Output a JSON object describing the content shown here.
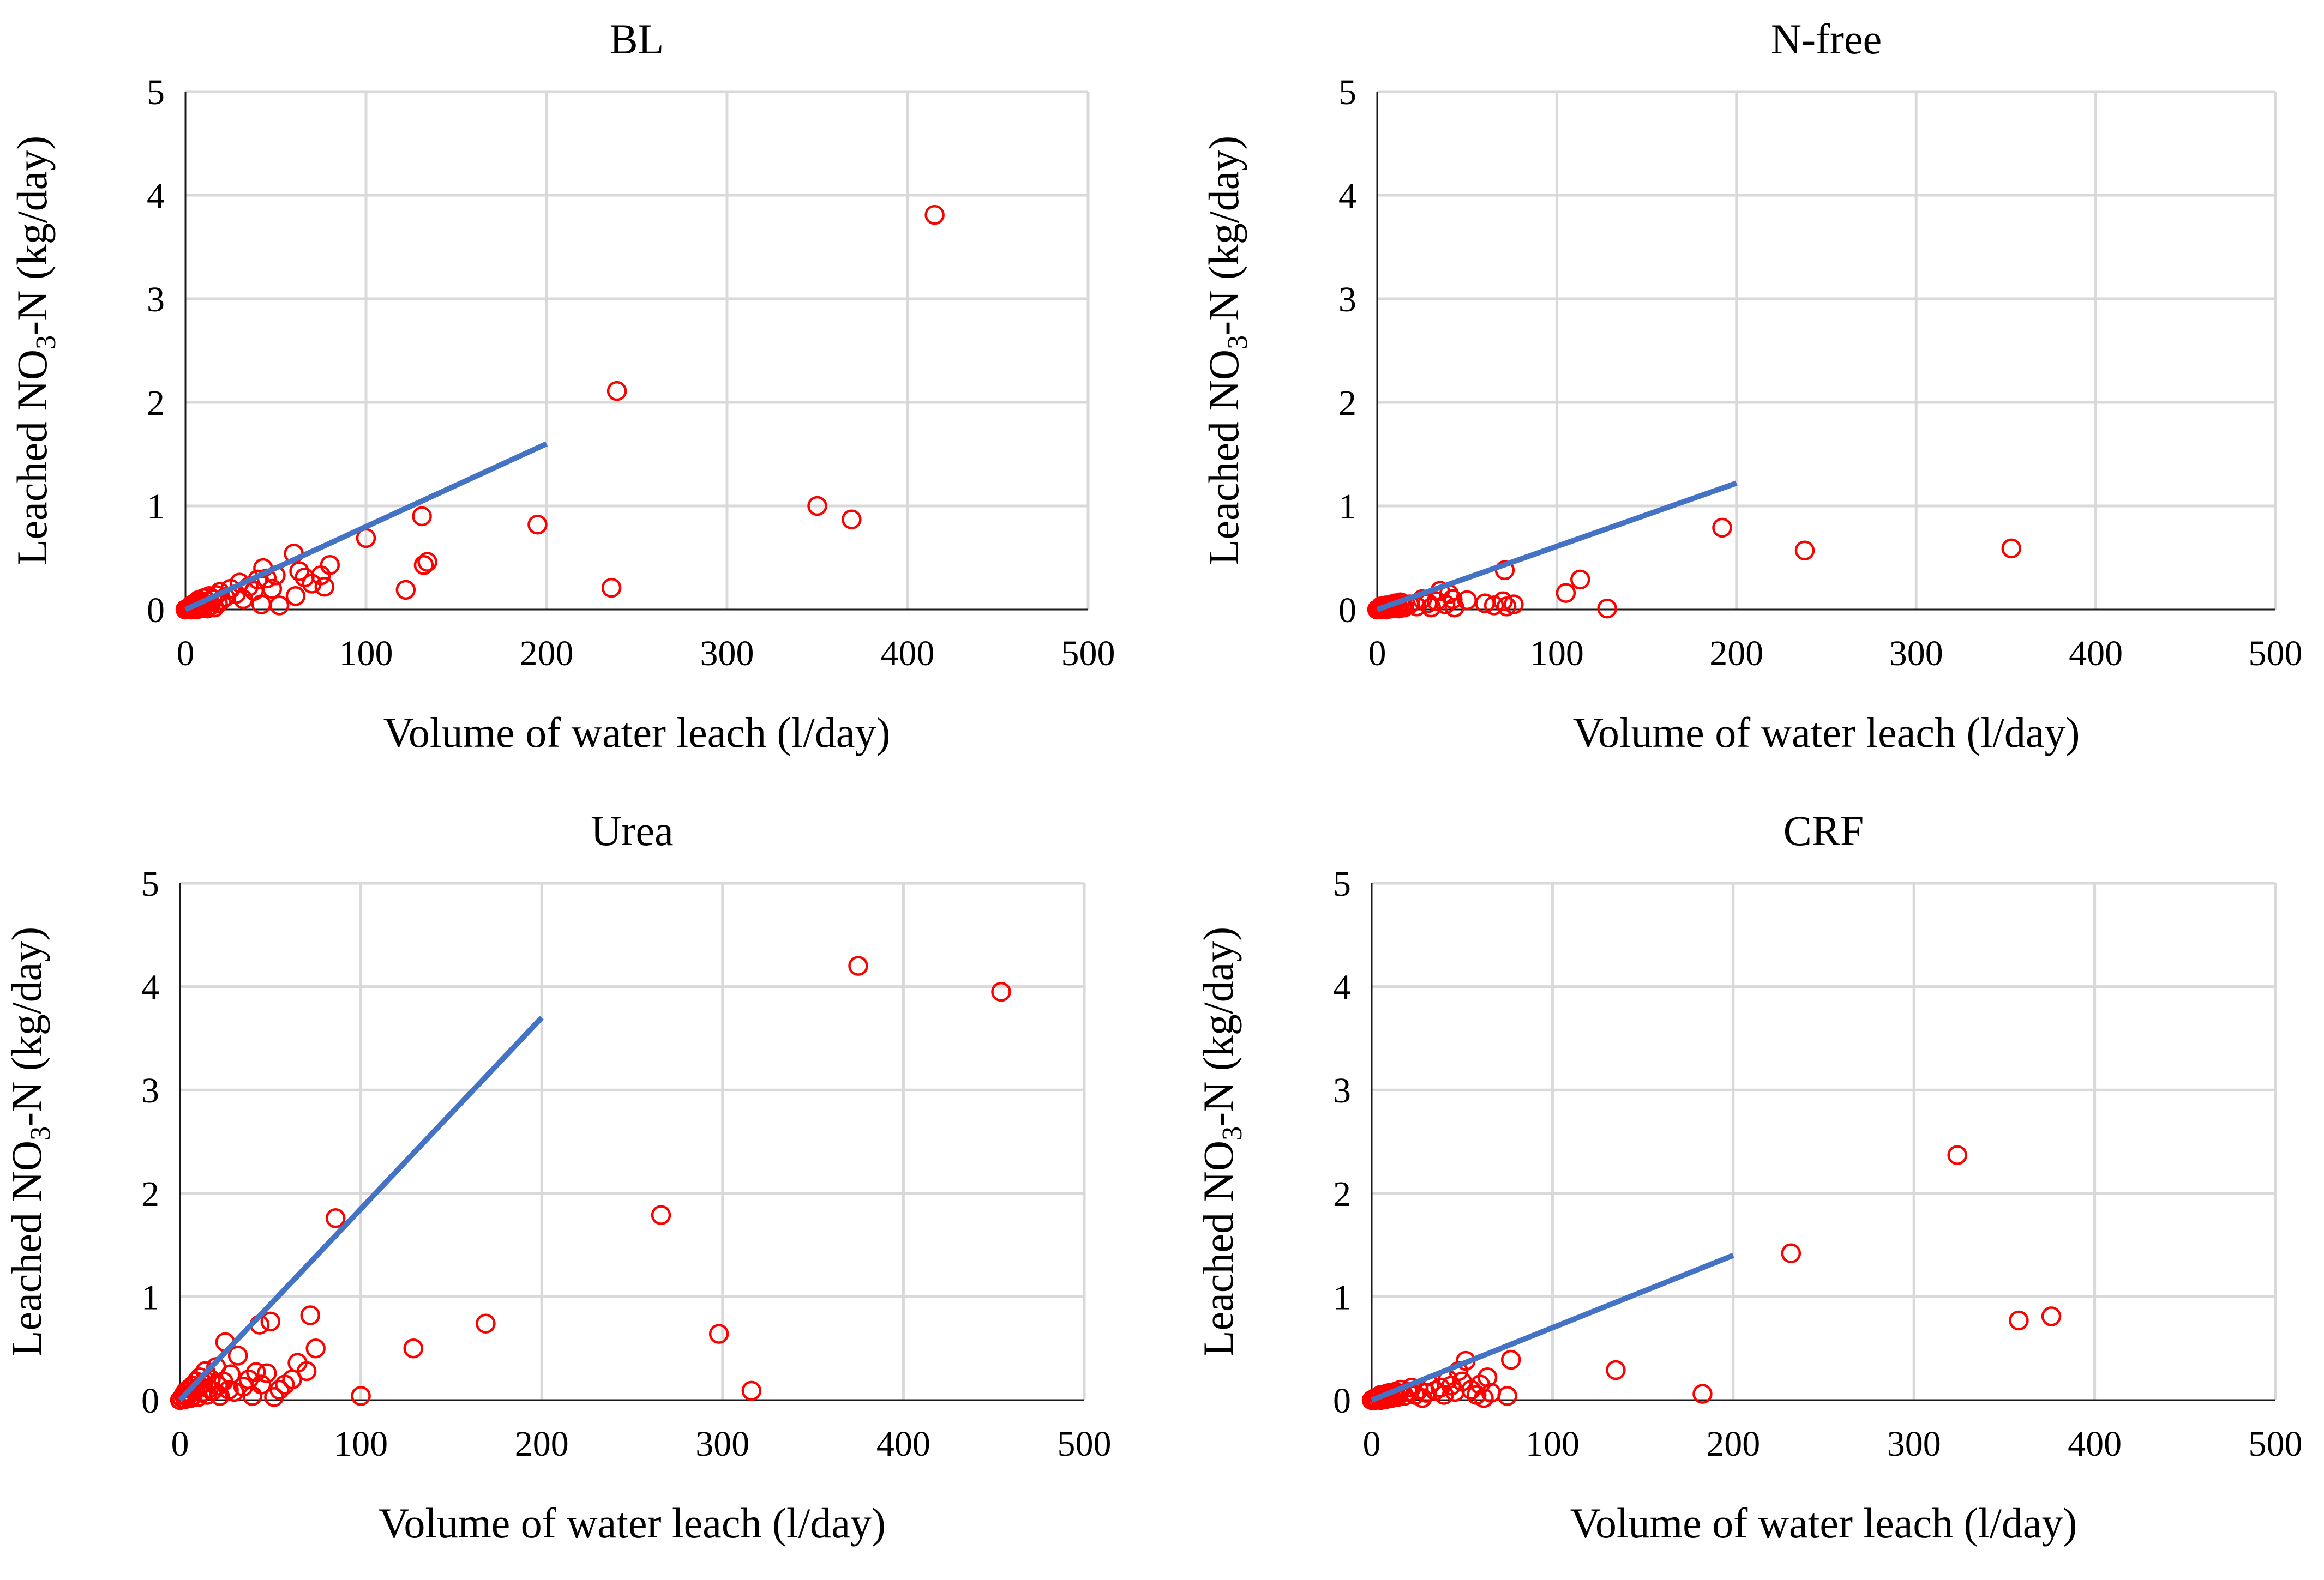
{
  "chart_data": [
    {
      "type": "scatter",
      "title": "BL",
      "xlabel": "Volume of water leach (l/day)",
      "ylabel_parts": [
        "Leached NO",
        "3",
        "-N (kg/day)"
      ],
      "xlim": [
        0,
        500
      ],
      "ylim": [
        0,
        5
      ],
      "xticks": [
        "0",
        "100",
        "200",
        "300",
        "400",
        "500"
      ],
      "yticks": [
        "0",
        "1",
        "2",
        "3",
        "4",
        "5"
      ],
      "grid": true,
      "trendline": {
        "x": [
          0,
          200
        ],
        "y": [
          0,
          1.6
        ],
        "color": "#4472c4"
      },
      "marker_color": "#ff0000",
      "points": [
        [
          0,
          0
        ],
        [
          1,
          0.01
        ],
        [
          2,
          0.02
        ],
        [
          3,
          0
        ],
        [
          3,
          0.04
        ],
        [
          4,
          0.01
        ],
        [
          5,
          0.03
        ],
        [
          5,
          0.06
        ],
        [
          6,
          0
        ],
        [
          6,
          0.02
        ],
        [
          7,
          0.05
        ],
        [
          7,
          0.09
        ],
        [
          8,
          0.01
        ],
        [
          8,
          0.03
        ],
        [
          9,
          0.07
        ],
        [
          10,
          0.02
        ],
        [
          10,
          0.11
        ],
        [
          11,
          0.05
        ],
        [
          12,
          0.01
        ],
        [
          12,
          0.08
        ],
        [
          13,
          0.13
        ],
        [
          14,
          0.04
        ],
        [
          15,
          0.1
        ],
        [
          16,
          0.02
        ],
        [
          17,
          0.14
        ],
        [
          18,
          0.06
        ],
        [
          19,
          0.17
        ],
        [
          20,
          0.09
        ],
        [
          22,
          0.12
        ],
        [
          25,
          0.2
        ],
        [
          28,
          0.15
        ],
        [
          30,
          0.26
        ],
        [
          32,
          0.1
        ],
        [
          35,
          0.22
        ],
        [
          38,
          0.18
        ],
        [
          40,
          0.29
        ],
        [
          42,
          0.05
        ],
        [
          43,
          0.4
        ],
        [
          45,
          0.3
        ],
        [
          48,
          0.2
        ],
        [
          50,
          0.33
        ],
        [
          52,
          0.04
        ],
        [
          60,
          0.54
        ],
        [
          61,
          0.13
        ],
        [
          63,
          0.37
        ],
        [
          66,
          0.31
        ],
        [
          70,
          0.25
        ],
        [
          75,
          0.33
        ],
        [
          77,
          0.22
        ],
        [
          80,
          0.43
        ],
        [
          100,
          0.69
        ],
        [
          122,
          0.19
        ],
        [
          131,
          0.9
        ],
        [
          132,
          0.43
        ],
        [
          134,
          0.46
        ],
        [
          195,
          0.82
        ],
        [
          236,
          0.21
        ],
        [
          239,
          2.11
        ],
        [
          350,
          1.0
        ],
        [
          369,
          0.87
        ],
        [
          415,
          3.81
        ]
      ]
    },
    {
      "type": "scatter",
      "title": "N-free",
      "xlabel": "Volume of water leach (l/day)",
      "ylabel_parts": [
        "Leached NO",
        "3",
        "-N (kg/day)"
      ],
      "xlim": [
        0,
        500
      ],
      "ylim": [
        0,
        5
      ],
      "xticks": [
        "0",
        "100",
        "200",
        "300",
        "400",
        "500"
      ],
      "yticks": [
        "0",
        "1",
        "2",
        "3",
        "4",
        "5"
      ],
      "grid": true,
      "trendline": {
        "x": [
          0,
          200
        ],
        "y": [
          0,
          1.22
        ],
        "color": "#4472c4"
      },
      "marker_color": "#ff0000",
      "points": [
        [
          0,
          0
        ],
        [
          1,
          0.01
        ],
        [
          2,
          0
        ],
        [
          2,
          0.03
        ],
        [
          3,
          0.01
        ],
        [
          4,
          0.02
        ],
        [
          5,
          0
        ],
        [
          5,
          0.04
        ],
        [
          6,
          0.01
        ],
        [
          7,
          0.03
        ],
        [
          8,
          0.05
        ],
        [
          8,
          0.01
        ],
        [
          9,
          0.02
        ],
        [
          10,
          0.06
        ],
        [
          11,
          0.03
        ],
        [
          12,
          0.01
        ],
        [
          13,
          0.07
        ],
        [
          14,
          0.04
        ],
        [
          15,
          0.02
        ],
        [
          18,
          0.05
        ],
        [
          22,
          0.03
        ],
        [
          25,
          0.1
        ],
        [
          28,
          0.06
        ],
        [
          30,
          0.02
        ],
        [
          33,
          0.08
        ],
        [
          35,
          0.18
        ],
        [
          38,
          0.05
        ],
        [
          40,
          0.15
        ],
        [
          42,
          0.1
        ],
        [
          43,
          0.02
        ],
        [
          50,
          0.09
        ],
        [
          60,
          0.06
        ],
        [
          65,
          0.04
        ],
        [
          70,
          0.08
        ],
        [
          71,
          0.38
        ],
        [
          72,
          0.03
        ],
        [
          76,
          0.05
        ],
        [
          105,
          0.16
        ],
        [
          113,
          0.29
        ],
        [
          128,
          0.01
        ],
        [
          192,
          0.79
        ],
        [
          238,
          0.57
        ],
        [
          353,
          0.59
        ]
      ]
    },
    {
      "type": "scatter",
      "title": "Urea",
      "xlabel": "Volume of water leach (l/day)",
      "ylabel_parts": [
        "Leached NO",
        "3",
        "-N (kg/day)"
      ],
      "xlim": [
        0,
        500
      ],
      "ylim": [
        0,
        5
      ],
      "xticks": [
        "0",
        "100",
        "200",
        "300",
        "400",
        "500"
      ],
      "yticks": [
        "0",
        "1",
        "2",
        "3",
        "4",
        "5"
      ],
      "grid": true,
      "trendline": {
        "x": [
          0,
          200
        ],
        "y": [
          0,
          3.7
        ],
        "color": "#4472c4"
      },
      "marker_color": "#ff0000",
      "points": [
        [
          0,
          0
        ],
        [
          1,
          0.02
        ],
        [
          2,
          0.05
        ],
        [
          3,
          0.01
        ],
        [
          3,
          0.08
        ],
        [
          4,
          0.03
        ],
        [
          5,
          0.11
        ],
        [
          5,
          0.06
        ],
        [
          6,
          0.02
        ],
        [
          7,
          0.14
        ],
        [
          7,
          0.04
        ],
        [
          8,
          0.09
        ],
        [
          9,
          0.18
        ],
        [
          10,
          0.03
        ],
        [
          10,
          0.12
        ],
        [
          11,
          0.22
        ],
        [
          12,
          0.07
        ],
        [
          13,
          0.16
        ],
        [
          14,
          0.28
        ],
        [
          15,
          0.05
        ],
        [
          16,
          0.11
        ],
        [
          17,
          0.2
        ],
        [
          18,
          0.09
        ],
        [
          20,
          0.32
        ],
        [
          21,
          0.14
        ],
        [
          22,
          0.04
        ],
        [
          24,
          0.18
        ],
        [
          25,
          0.56
        ],
        [
          27,
          0.1
        ],
        [
          28,
          0.25
        ],
        [
          30,
          0.08
        ],
        [
          32,
          0.43
        ],
        [
          35,
          0.13
        ],
        [
          38,
          0.2
        ],
        [
          40,
          0.04
        ],
        [
          42,
          0.27
        ],
        [
          44,
          0.73
        ],
        [
          45,
          0.15
        ],
        [
          48,
          0.26
        ],
        [
          50,
          0.76
        ],
        [
          52,
          0.03
        ],
        [
          55,
          0.1
        ],
        [
          58,
          0.15
        ],
        [
          62,
          0.2
        ],
        [
          65,
          0.36
        ],
        [
          70,
          0.28
        ],
        [
          72,
          0.82
        ],
        [
          75,
          0.5
        ],
        [
          86,
          1.76
        ],
        [
          100,
          0.04
        ],
        [
          129,
          0.5
        ],
        [
          169,
          0.74
        ],
        [
          266,
          1.79
        ],
        [
          298,
          0.64
        ],
        [
          316,
          0.09
        ],
        [
          375,
          4.2
        ],
        [
          454,
          3.95
        ]
      ]
    },
    {
      "type": "scatter",
      "title": "CRF",
      "xlabel": "Volume of water leach (l/day)",
      "ylabel_parts": [
        "Leached NO",
        "3",
        "-N (kg/day)"
      ],
      "xlim": [
        0,
        500
      ],
      "ylim": [
        0,
        5
      ],
      "xticks": [
        "0",
        "100",
        "200",
        "300",
        "400",
        "500"
      ],
      "yticks": [
        "0",
        "1",
        "2",
        "3",
        "4",
        "5"
      ],
      "grid": true,
      "trendline": {
        "x": [
          0,
          200
        ],
        "y": [
          0,
          1.4
        ],
        "color": "#4472c4"
      },
      "marker_color": "#ff0000",
      "points": [
        [
          0,
          0
        ],
        [
          1,
          0.01
        ],
        [
          2,
          0
        ],
        [
          2,
          0.02
        ],
        [
          3,
          0.01
        ],
        [
          4,
          0.03
        ],
        [
          5,
          0
        ],
        [
          5,
          0.05
        ],
        [
          6,
          0.02
        ],
        [
          7,
          0.04
        ],
        [
          8,
          0.01
        ],
        [
          8,
          0.06
        ],
        [
          9,
          0.03
        ],
        [
          10,
          0.07
        ],
        [
          11,
          0.02
        ],
        [
          12,
          0.05
        ],
        [
          13,
          0.08
        ],
        [
          14,
          0.03
        ],
        [
          15,
          0.06
        ],
        [
          16,
          0.1
        ],
        [
          18,
          0.04
        ],
        [
          20,
          0.08
        ],
        [
          22,
          0.12
        ],
        [
          24,
          0.05
        ],
        [
          26,
          0.1
        ],
        [
          28,
          0.02
        ],
        [
          30,
          0.07
        ],
        [
          32,
          0.15
        ],
        [
          35,
          0.09
        ],
        [
          38,
          0.12
        ],
        [
          40,
          0.05
        ],
        [
          42,
          0.2
        ],
        [
          44,
          0.14
        ],
        [
          46,
          0.08
        ],
        [
          48,
          0.28
        ],
        [
          50,
          0.18
        ],
        [
          52,
          0.38
        ],
        [
          55,
          0.1
        ],
        [
          58,
          0.05
        ],
        [
          60,
          0.15
        ],
        [
          62,
          0.02
        ],
        [
          64,
          0.22
        ],
        [
          66,
          0.07
        ],
        [
          75,
          0.04
        ],
        [
          77,
          0.39
        ],
        [
          135,
          0.29
        ],
        [
          183,
          0.06
        ],
        [
          232,
          1.42
        ],
        [
          324,
          2.37
        ],
        [
          358,
          0.77
        ],
        [
          376,
          0.81
        ]
      ]
    }
  ]
}
